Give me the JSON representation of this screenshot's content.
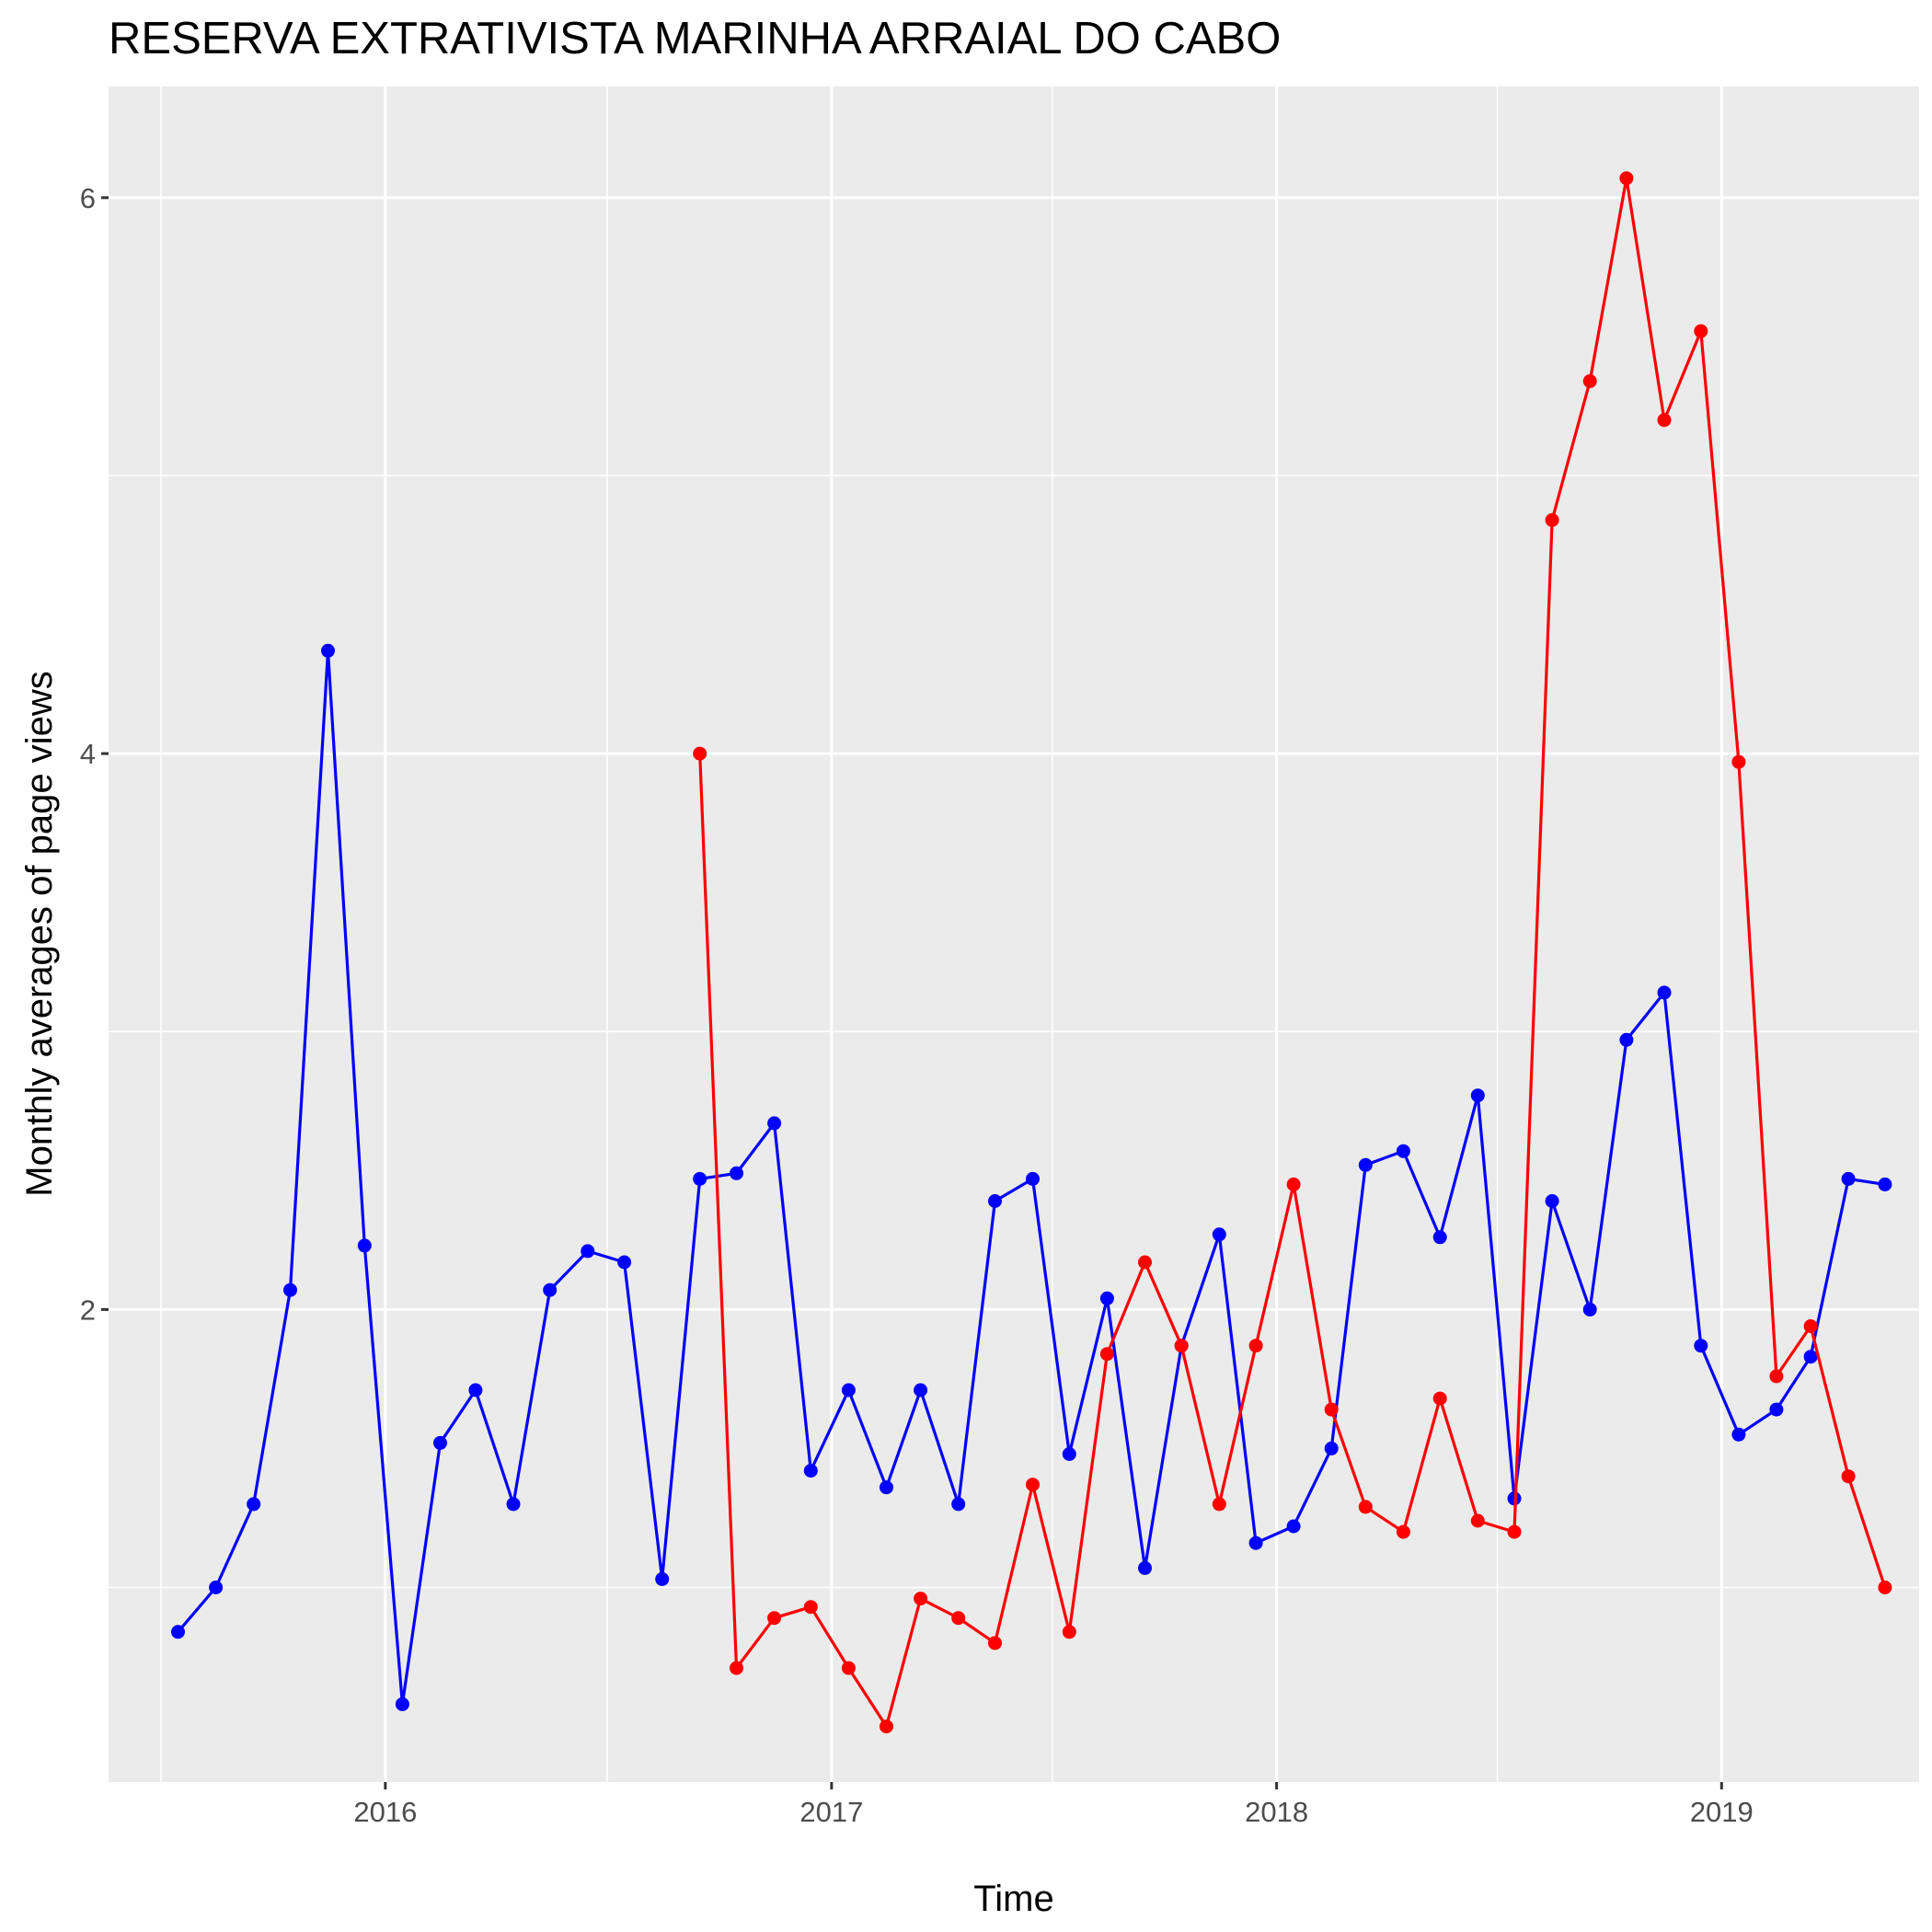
{
  "chart_data": {
    "type": "line",
    "title": "RESERVA EXTRATIVISTA MARINHA ARRAIAL DO CABO",
    "xlabel": "Time",
    "ylabel": "Monthly averages of page views",
    "x_ticks": [
      "2016",
      "2017",
      "2018",
      "2019"
    ],
    "y_ticks": [
      "2",
      "4",
      "6"
    ],
    "xlim": [
      "2015-05-19",
      "2019-06-12"
    ],
    "ylim": [
      0.3,
      6.4
    ],
    "grid": true,
    "legend": "none",
    "series": [
      {
        "color": "#0000ff",
        "points": [
          [
            "2015-07",
            0.84
          ],
          [
            "2015-08",
            1.0
          ],
          [
            "2015-09",
            1.3
          ],
          [
            "2015-10",
            2.07
          ],
          [
            "2015-11",
            4.37
          ],
          [
            "2015-12",
            2.23
          ],
          [
            "2016-01",
            0.58
          ],
          [
            "2016-02",
            1.52
          ],
          [
            "2016-03",
            1.71
          ],
          [
            "2016-04",
            1.3
          ],
          [
            "2016-05",
            2.07
          ],
          [
            "2016-06",
            2.21
          ],
          [
            "2016-07",
            2.17
          ],
          [
            "2016-08",
            1.03
          ],
          [
            "2016-09",
            2.47
          ],
          [
            "2016-10",
            2.49
          ],
          [
            "2016-11",
            2.67
          ],
          [
            "2016-12",
            1.42
          ],
          [
            "2017-01",
            1.71
          ],
          [
            "2017-02",
            1.36
          ],
          [
            "2017-03",
            1.71
          ],
          [
            "2017-04",
            1.3
          ],
          [
            "2017-05",
            2.39
          ],
          [
            "2017-06",
            2.47
          ],
          [
            "2017-07",
            1.48
          ],
          [
            "2017-08",
            2.04
          ],
          [
            "2017-09",
            1.07
          ],
          [
            "2017-10",
            1.87
          ],
          [
            "2017-11",
            2.27
          ],
          [
            "2017-12",
            1.16
          ],
          [
            "2018-01",
            1.22
          ],
          [
            "2018-02",
            1.5
          ],
          [
            "2018-03",
            2.52
          ],
          [
            "2018-04",
            2.57
          ],
          [
            "2018-05",
            2.26
          ],
          [
            "2018-06",
            2.77
          ],
          [
            "2018-07",
            1.32
          ],
          [
            "2018-08",
            2.39
          ],
          [
            "2018-09",
            2.0
          ],
          [
            "2018-10",
            2.97
          ],
          [
            "2018-11",
            3.14
          ],
          [
            "2018-12",
            1.87
          ],
          [
            "2019-01",
            1.55
          ],
          [
            "2019-02",
            1.64
          ],
          [
            "2019-03",
            1.83
          ],
          [
            "2019-04",
            2.47
          ],
          [
            "2019-05",
            2.45
          ]
        ]
      },
      {
        "color": "#ff0000",
        "points": [
          [
            "2016-09",
            4.0
          ],
          [
            "2016-10",
            0.71
          ],
          [
            "2016-11",
            0.89
          ],
          [
            "2016-12",
            0.93
          ],
          [
            "2017-01",
            0.71
          ],
          [
            "2017-02",
            0.5
          ],
          [
            "2017-03",
            0.96
          ],
          [
            "2017-04",
            0.89
          ],
          [
            "2017-05",
            0.8
          ],
          [
            "2017-06",
            1.37
          ],
          [
            "2017-07",
            0.84
          ],
          [
            "2017-08",
            1.84
          ],
          [
            "2017-09",
            2.17
          ],
          [
            "2017-10",
            1.87
          ],
          [
            "2017-11",
            1.3
          ],
          [
            "2017-12",
            1.87
          ],
          [
            "2018-01",
            2.45
          ],
          [
            "2018-02",
            1.64
          ],
          [
            "2018-03",
            1.29
          ],
          [
            "2018-04",
            1.2
          ],
          [
            "2018-05",
            1.68
          ],
          [
            "2018-06",
            1.24
          ],
          [
            "2018-07",
            1.2
          ],
          [
            "2018-08",
            4.84
          ],
          [
            "2018-09",
            5.34
          ],
          [
            "2018-10",
            6.07
          ],
          [
            "2018-11",
            5.2
          ],
          [
            "2018-12",
            5.52
          ],
          [
            "2019-01",
            3.97
          ],
          [
            "2019-02",
            1.76
          ],
          [
            "2019-03",
            1.94
          ],
          [
            "2019-04",
            1.4
          ],
          [
            "2019-05",
            1.0
          ]
        ]
      }
    ]
  }
}
